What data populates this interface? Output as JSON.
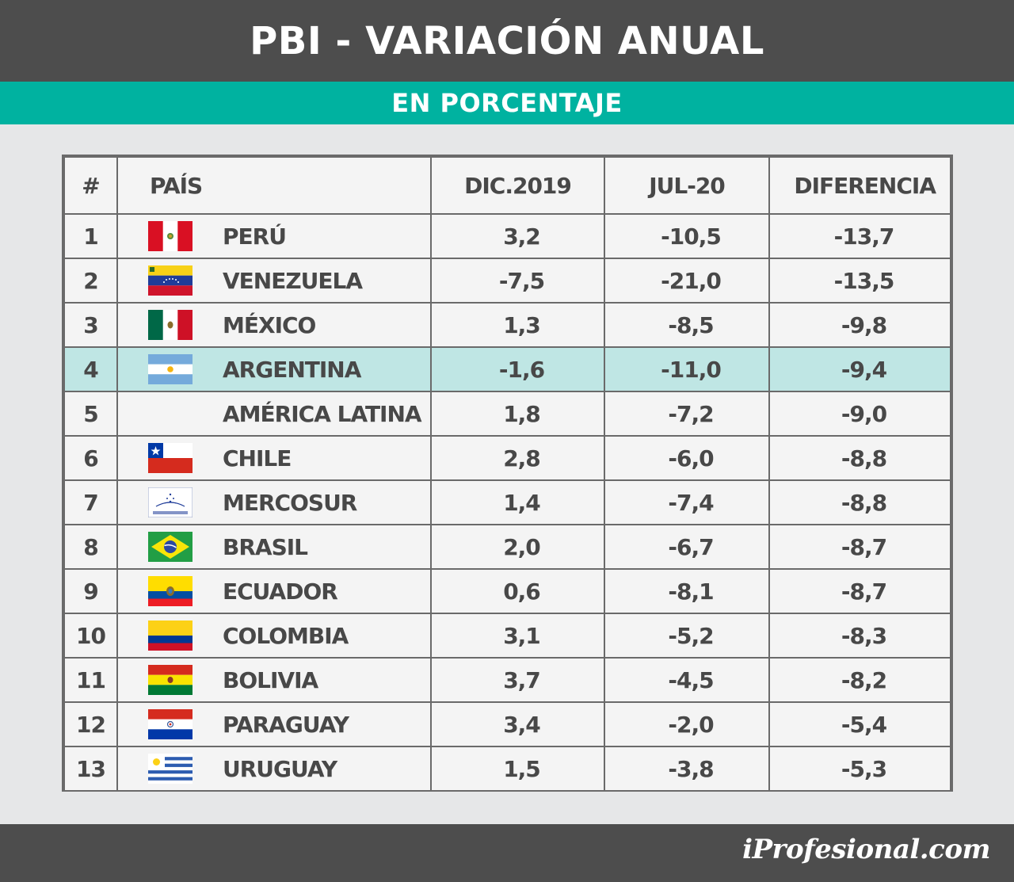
{
  "header": {
    "title": "PBI - VARIACIÓN ANUAL",
    "subtitle": "EN PORCENTAJE"
  },
  "footer": {
    "brand": "iProfesional.com"
  },
  "colors": {
    "header_bg": "#4d4d4d",
    "accent": "#00b2a0",
    "highlight_row": "#bfe6e4",
    "page_bg": "#e6e7e8"
  },
  "chart_data": {
    "type": "table",
    "columns": [
      "#",
      "PAÍS",
      "DIC.2019",
      "JUL-20",
      "DIFERENCIA"
    ],
    "highlight_row": 3,
    "rows": [
      {
        "rank": "1",
        "country": "PERÚ",
        "flag": "peru-flag-icon",
        "dic2019": "3,2",
        "jul20": "-10,5",
        "diferencia": "-13,7"
      },
      {
        "rank": "2",
        "country": "VENEZUELA",
        "flag": "venezuela-flag-icon",
        "dic2019": "-7,5",
        "jul20": "-21,0",
        "diferencia": "-13,5"
      },
      {
        "rank": "3",
        "country": "MÉXICO",
        "flag": "mexico-flag-icon",
        "dic2019": "1,3",
        "jul20": "-8,5",
        "diferencia": "-9,8"
      },
      {
        "rank": "4",
        "country": "ARGENTINA",
        "flag": "argentina-flag-icon",
        "dic2019": "-1,6",
        "jul20": "-11,0",
        "diferencia": "-9,4"
      },
      {
        "rank": "5",
        "country": "AMÉRICA LATINA",
        "flag": "",
        "dic2019": "1,8",
        "jul20": "-7,2",
        "diferencia": "-9,0"
      },
      {
        "rank": "6",
        "country": "CHILE",
        "flag": "chile-flag-icon",
        "dic2019": "2,8",
        "jul20": "-6,0",
        "diferencia": "-8,8"
      },
      {
        "rank": "7",
        "country": "MERCOSUR",
        "flag": "mercosur-flag-icon",
        "dic2019": "1,4",
        "jul20": "-7,4",
        "diferencia": "-8,8"
      },
      {
        "rank": "8",
        "country": "BRASIL",
        "flag": "brazil-flag-icon",
        "dic2019": "2,0",
        "jul20": "-6,7",
        "diferencia": "-8,7"
      },
      {
        "rank": "9",
        "country": "ECUADOR",
        "flag": "ecuador-flag-icon",
        "dic2019": "0,6",
        "jul20": "-8,1",
        "diferencia": "-8,7"
      },
      {
        "rank": "10",
        "country": "COLOMBIA",
        "flag": "colombia-flag-icon",
        "dic2019": "3,1",
        "jul20": "-5,2",
        "diferencia": "-8,3"
      },
      {
        "rank": "11",
        "country": "BOLIVIA",
        "flag": "bolivia-flag-icon",
        "dic2019": "3,7",
        "jul20": "-4,5",
        "diferencia": "-8,2"
      },
      {
        "rank": "12",
        "country": "PARAGUAY",
        "flag": "paraguay-flag-icon",
        "dic2019": "3,4",
        "jul20": "-2,0",
        "diferencia": "-5,4"
      },
      {
        "rank": "13",
        "country": "URUGUAY",
        "flag": "uruguay-flag-icon",
        "dic2019": "1,5",
        "jul20": "-3,8",
        "diferencia": "-5,3"
      }
    ]
  }
}
